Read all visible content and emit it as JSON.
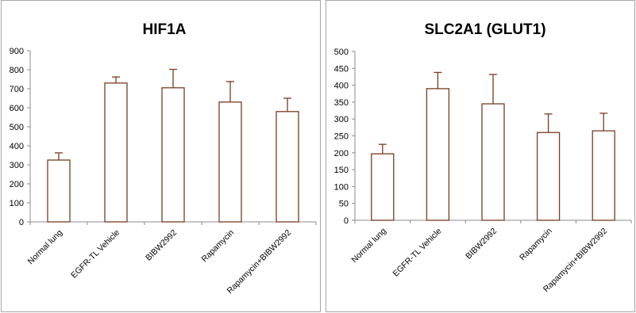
{
  "figure": {
    "panels": 2
  },
  "chart_data": [
    {
      "type": "bar",
      "title": "HIF1A",
      "xlabel": "",
      "ylabel": "",
      "categories": [
        "Normal lung",
        "EGFR-TL Vehicle",
        "BIBW2992",
        "Rapamycin",
        "Rapamycin+BIBW2992"
      ],
      "values": [
        325,
        730,
        705,
        630,
        580
      ],
      "error_plus": [
        38,
        32,
        97,
        108,
        70
      ],
      "ylim": [
        0,
        900
      ],
      "yticks": [
        0,
        100,
        200,
        300,
        400,
        500,
        600,
        700,
        800,
        900
      ],
      "bar_color": "#ffffff",
      "bar_edge_color": "#7a3b22",
      "grid": false,
      "legend": "none"
    },
    {
      "type": "bar",
      "title": "SLC2A1 (GLUT1)",
      "xlabel": "",
      "ylabel": "",
      "categories": [
        "Normal lung",
        "EGFR-TL Vehicle",
        "BIBW2992",
        "Rapamycin",
        "Rapamycin+BIBW2992"
      ],
      "values": [
        197,
        390,
        345,
        260,
        265
      ],
      "error_plus": [
        28,
        48,
        87,
        55,
        52
      ],
      "ylim": [
        0,
        500
      ],
      "yticks": [
        0,
        50,
        100,
        150,
        200,
        250,
        300,
        350,
        400,
        450,
        500
      ],
      "bar_color": "#ffffff",
      "bar_edge_color": "#7a3b22",
      "grid": false,
      "legend": "none"
    }
  ]
}
